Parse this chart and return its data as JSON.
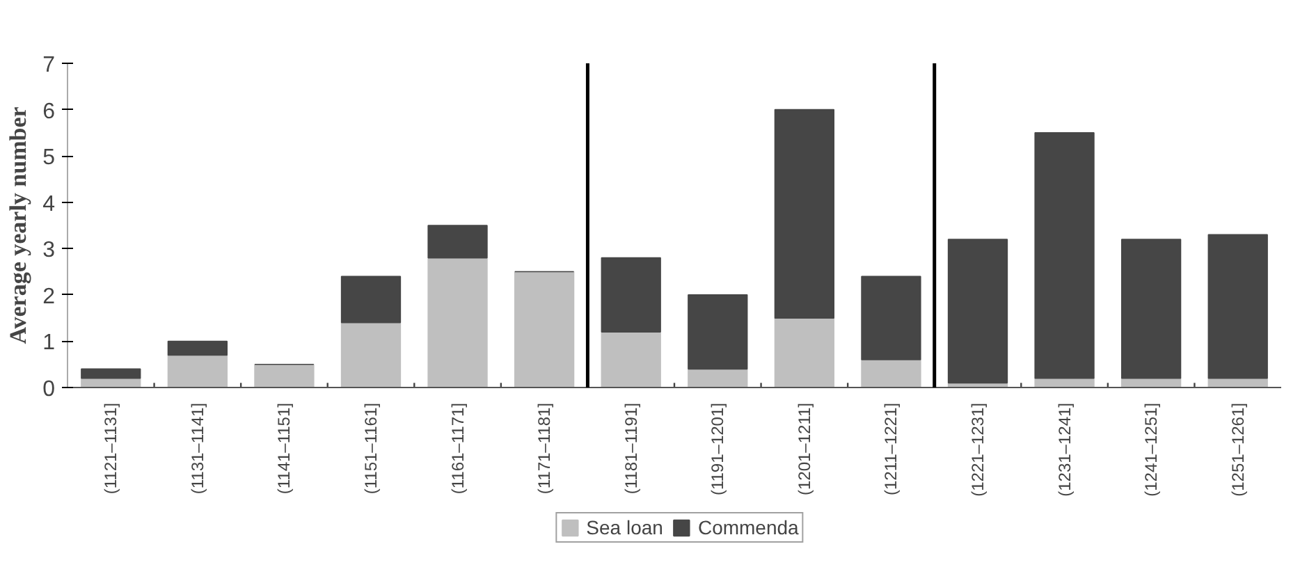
{
  "chart_data": {
    "type": "bar",
    "stacked": true,
    "ylabel": "Average yearly number",
    "categories": [
      "(1121–1131]",
      "(1131–1141]",
      "(1141–1151]",
      "(1151–1161]",
      "(1161–1171]",
      "(1171–1181]",
      "(1181–1191]",
      "(1191–1201]",
      "(1201–1211]",
      "(1211–1221]",
      "(1221–1231]",
      "(1231–1241]",
      "(1241–1251]",
      "(1251–1261]"
    ],
    "series": [
      {
        "name": "Sea loan",
        "color": "#bfbfbf",
        "values": [
          0.2,
          0.7,
          0.5,
          1.4,
          2.8,
          2.5,
          1.2,
          0.4,
          1.5,
          0.6,
          0.1,
          0.2,
          0.2,
          0.2
        ]
      },
      {
        "name": "Commenda",
        "color": "#464646",
        "values": [
          0.2,
          0.3,
          0,
          1.0,
          0.7,
          0,
          1.6,
          1.6,
          4.5,
          1.8,
          3.1,
          5.3,
          3.0,
          3.1
        ]
      }
    ],
    "ylim": [
      0,
      7
    ],
    "yticks": [
      0,
      1,
      2,
      3,
      4,
      5,
      6,
      7
    ],
    "legend": "bottom"
  }
}
